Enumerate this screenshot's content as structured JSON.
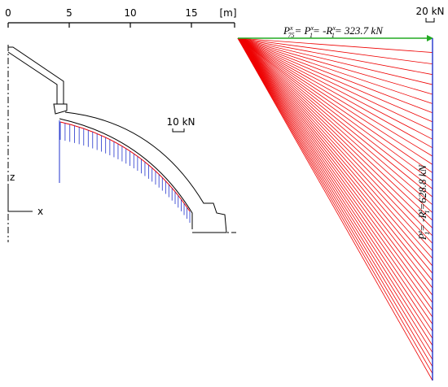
{
  "scale_bar": {
    "ticks": [
      "0",
      "5",
      "10",
      "15"
    ],
    "unit": "[m]"
  },
  "load_scale": "10 kN",
  "force_scale": "20 kN",
  "axes": {
    "z": "z",
    "x": "x"
  },
  "horizontal_force": [
    "P",
    "x",
    "75",
    "= P",
    "x",
    "1",
    "= -R",
    "x",
    "1",
    "= 323.7 kN"
  ],
  "vertical_force": [
    "P",
    "z",
    "1",
    "= -R",
    "z",
    "1",
    "=628.8 kN"
  ]
}
